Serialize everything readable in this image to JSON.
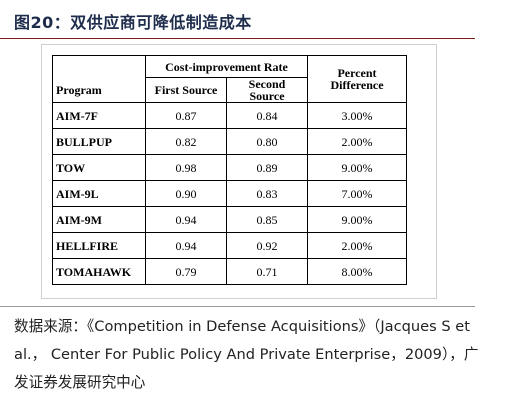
{
  "figure": {
    "title": "图20：双供应商可降低制造成本"
  },
  "table": {
    "group_header": "Cost-improvement Rate",
    "headers": {
      "program": "Program",
      "first": "First Source",
      "second": "Second Source",
      "diff": "Percent Difference"
    },
    "rows": [
      {
        "program": "AIM-7F",
        "first": "0.87",
        "second": "0.84",
        "diff": "3.00%"
      },
      {
        "program": "BULLPUP",
        "first": "0.82",
        "second": "0.80",
        "diff": "2.00%"
      },
      {
        "program": "TOW",
        "first": "0.98",
        "second": "0.89",
        "diff": "9.00%"
      },
      {
        "program": "AIM-9L",
        "first": "0.90",
        "second": "0.83",
        "diff": "7.00%"
      },
      {
        "program": "AIM-9M",
        "first": "0.94",
        "second": "0.85",
        "diff": "9.00%"
      },
      {
        "program": "HELLFIRE",
        "first": "0.94",
        "second": "0.92",
        "diff": "2.00%"
      },
      {
        "program": "TOMAHAWK",
        "first": "0.79",
        "second": "0.71",
        "diff": "8.00%"
      }
    ]
  },
  "source": {
    "text": "数据来源：《Competition in Defense Acquisitions》（Jacques S et al.， Center For Public Policy And Private Enterprise，2009），广发证券发展研究中心"
  },
  "colors": {
    "title": "#1f2d4d",
    "top_rule": "#7a1b1b"
  }
}
